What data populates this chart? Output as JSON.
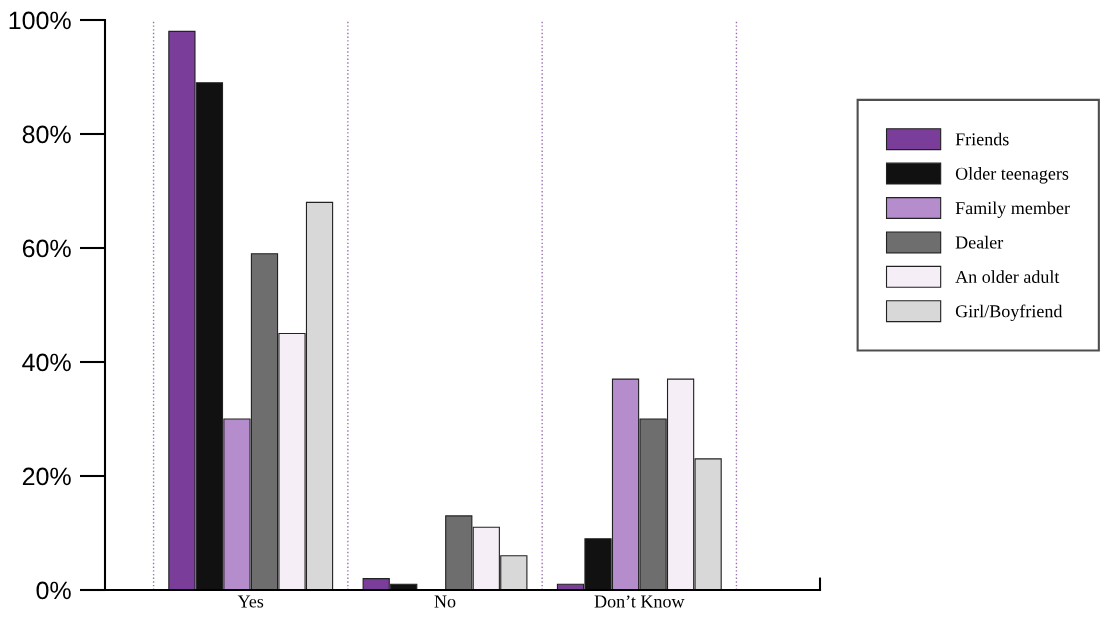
{
  "chart_data": {
    "type": "bar",
    "categories": [
      "Yes",
      "No",
      "Don’t Know"
    ],
    "series": [
      {
        "name": "Friends",
        "color": "#7a3d9a",
        "values": [
          98,
          2,
          1
        ]
      },
      {
        "name": "Older teenagers",
        "color": "#111111",
        "values": [
          89,
          1,
          9
        ]
      },
      {
        "name": "Family member",
        "color": "#b58ccc",
        "values": [
          30,
          null,
          37
        ]
      },
      {
        "name": "Dealer",
        "color": "#6e6e6e",
        "values": [
          59,
          13,
          30
        ]
      },
      {
        "name": "An older adult",
        "color": "#f6eef6",
        "values": [
          45,
          11,
          37
        ]
      },
      {
        "name": "Girl/Boyfriend",
        "color": "#d8d8d8",
        "values": [
          68,
          6,
          23
        ]
      }
    ],
    "ylim": [
      0,
      100
    ],
    "yticks": [
      {
        "value": 0,
        "label": "0%"
      },
      {
        "value": 20,
        "label": "20%"
      },
      {
        "value": 40,
        "label": "40%"
      },
      {
        "value": 60,
        "label": "60%"
      },
      {
        "value": 80,
        "label": "80%"
      },
      {
        "value": 100,
        "label": "100%"
      }
    ],
    "grid": "x",
    "legend": "right"
  }
}
